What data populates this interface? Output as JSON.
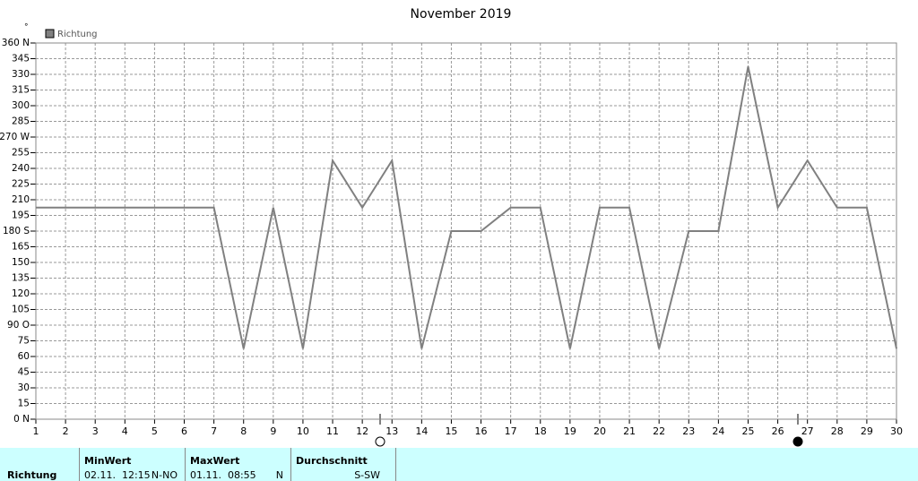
{
  "chart_data": {
    "type": "line",
    "title": "November 2019",
    "y_label": "°",
    "x": [
      1,
      2,
      3,
      4,
      5,
      6,
      7,
      8,
      9,
      10,
      11,
      12,
      13,
      14,
      15,
      16,
      17,
      18,
      19,
      20,
      21,
      22,
      23,
      24,
      25,
      26,
      27,
      28,
      29,
      30
    ],
    "series": [
      {
        "name": "Richtung",
        "color": "#808080",
        "values": [
          202.5,
          202.5,
          202.5,
          202.5,
          202.5,
          202.5,
          202.5,
          67.5,
          202.5,
          67.5,
          247.5,
          202.5,
          247.5,
          67.5,
          180,
          180,
          202.5,
          202.5,
          67.5,
          202.5,
          202.5,
          67.5,
          180,
          180,
          337.5,
          202.5,
          247.5,
          202.5,
          202.5,
          67.5
        ]
      }
    ],
    "xlim": [
      1,
      30
    ],
    "xticks": [
      1,
      2,
      3,
      4,
      5,
      6,
      7,
      8,
      9,
      10,
      11,
      12,
      13,
      14,
      15,
      16,
      17,
      18,
      19,
      20,
      21,
      22,
      23,
      24,
      25,
      26,
      27,
      28,
      29,
      30
    ],
    "ylim": [
      0,
      360
    ],
    "yticks": [
      {
        "value": 0,
        "label": "0 N"
      },
      15,
      30,
      45,
      60,
      75,
      {
        "value": 90,
        "label": "90 O"
      },
      105,
      120,
      135,
      150,
      165,
      {
        "value": 180,
        "label": "180 S"
      },
      195,
      210,
      225,
      240,
      255,
      {
        "value": 270,
        "label": "270 W"
      },
      285,
      300,
      315,
      330,
      345,
      {
        "value": 360,
        "label": "360 N"
      }
    ],
    "grid": true,
    "legend": "top-left"
  },
  "summary": {
    "row_label": "Richtung",
    "min": {
      "header": "MinWert",
      "time": "02.11.  12:15",
      "value": "N-NO"
    },
    "max": {
      "header": "MaxWert",
      "time": "01.11.  08:55",
      "value": "N"
    },
    "avg": {
      "header": "Durchschnitt",
      "value": "S-SW"
    }
  }
}
